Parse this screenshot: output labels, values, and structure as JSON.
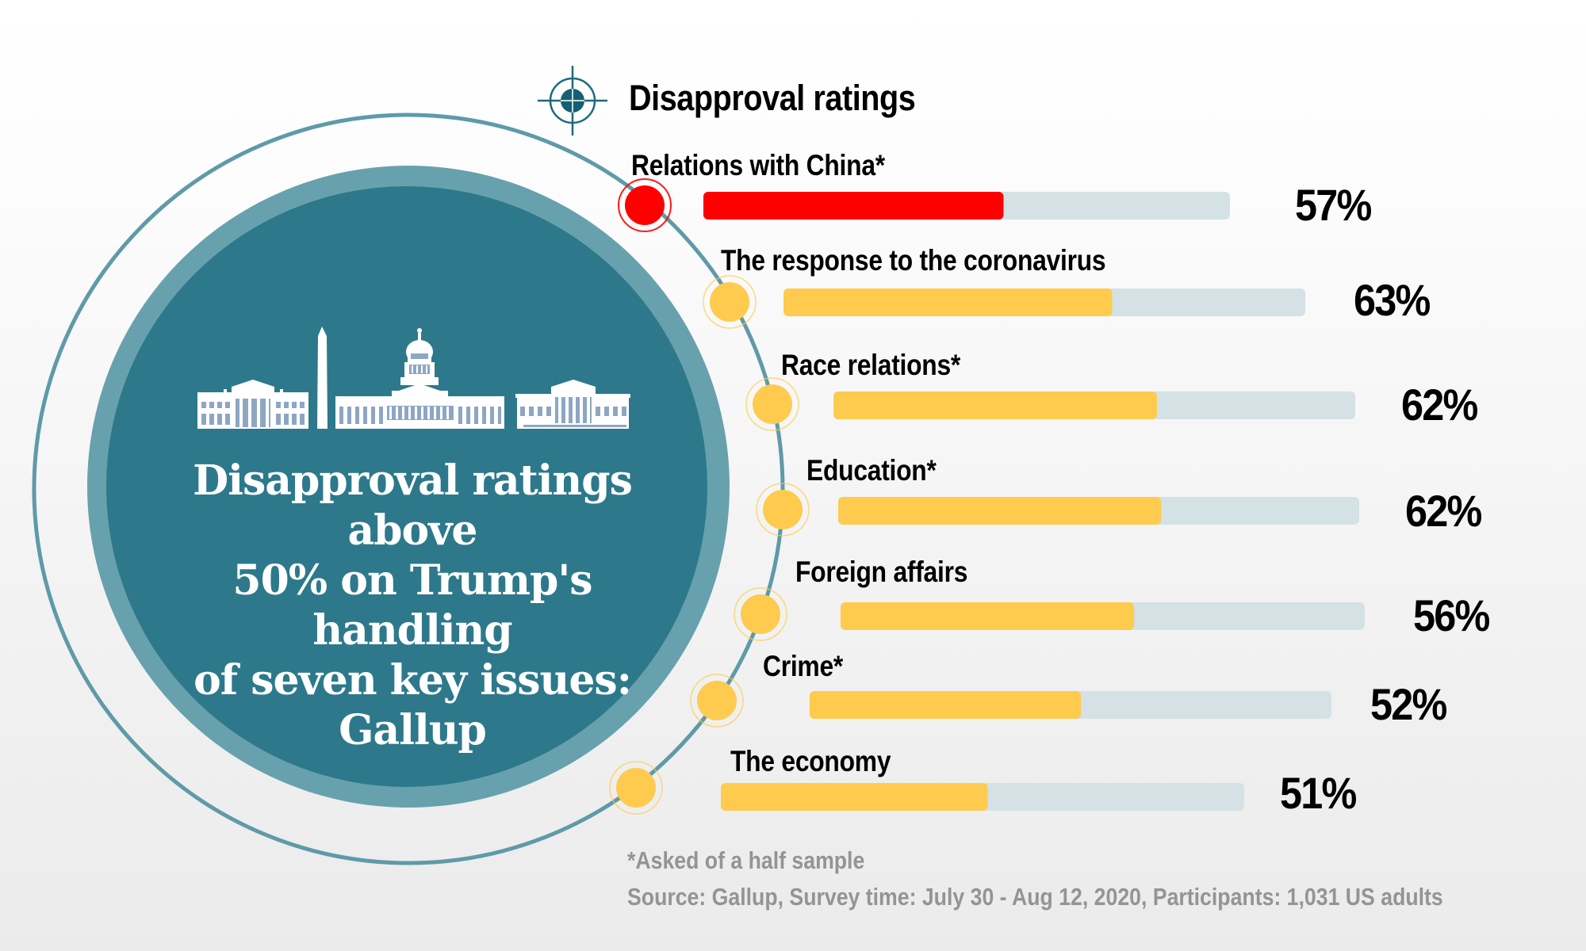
{
  "hero": {
    "lines": [
      "Disapproval ratings above",
      "50% on Trump's handling",
      "of seven key issues:",
      "Gallup"
    ]
  },
  "colors": {
    "teal_dark": "#2d798b",
    "teal_light": "#68a1ae",
    "ring": "#5f9aa8",
    "highlight": "#ff0000",
    "bar_fill": "#fecb4f",
    "bar_track": "#d4e2e6",
    "icon": "#155f72",
    "footnote": "#949494"
  },
  "chart_data": {
    "type": "bar",
    "orientation": "horizontal",
    "title": "Disapproval ratings",
    "categories": [
      "Relations with China*",
      "The response to the coronavirus",
      "Race relations*",
      "Education*",
      "Foreign affairs",
      "Crime*",
      "The economy"
    ],
    "values": [
      57,
      63,
      62,
      62,
      56,
      52,
      51
    ],
    "value_labels": [
      "57%",
      "63%",
      "62%",
      "62%",
      "56%",
      "52%",
      "51%"
    ],
    "unit": "%",
    "xlim": [
      0,
      100
    ],
    "highlighted_category": "Relations with China*",
    "xlabel": "",
    "ylabel": "",
    "grid": false,
    "legend": "none"
  },
  "footer": {
    "note": "*Asked of a half sample",
    "source": "Source: Gallup,  Survey time: July 30 - Aug 12, 2020, Participants: 1,031 US adults"
  }
}
